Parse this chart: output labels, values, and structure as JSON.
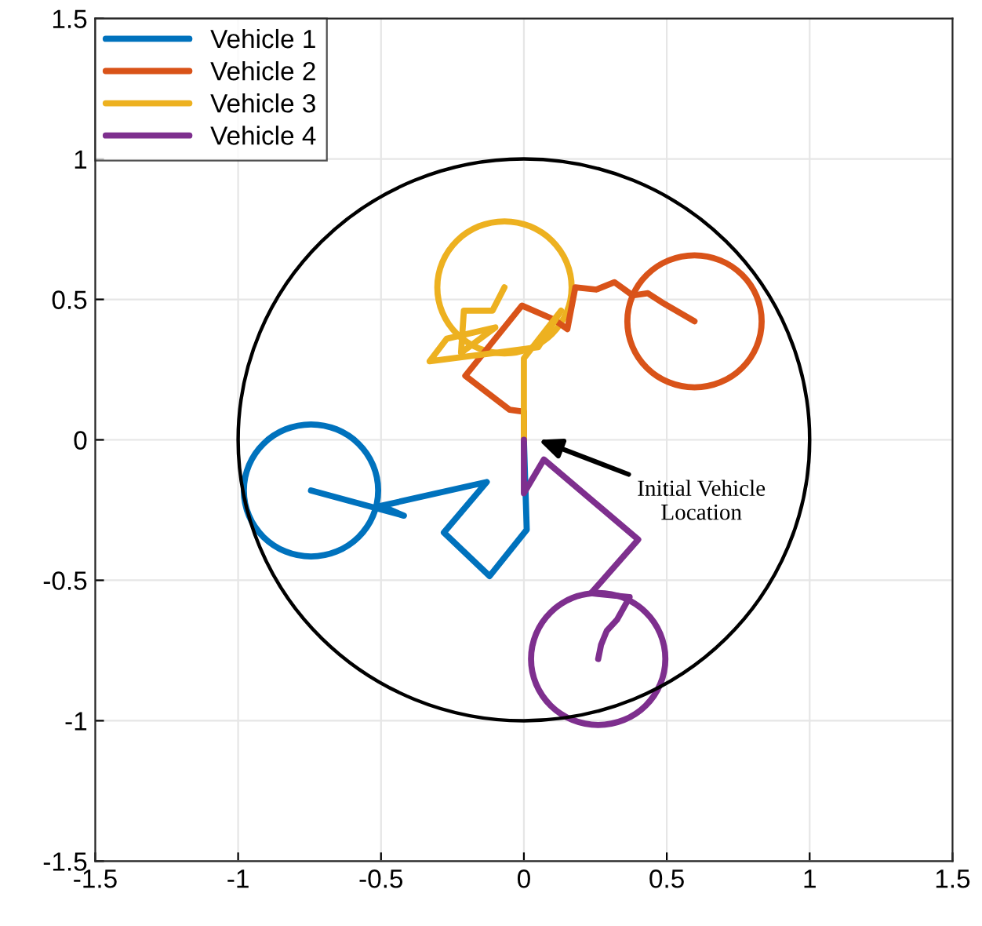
{
  "chart_data": {
    "type": "line",
    "xlim": [
      -1.5,
      1.5
    ],
    "ylim": [
      -1.5,
      1.5
    ],
    "xticks": [
      -1.5,
      -1,
      -0.5,
      0,
      0.5,
      1,
      1.5
    ],
    "yticks": [
      -1.5,
      -1,
      -0.5,
      0,
      0.5,
      1,
      1.5
    ],
    "grid": true,
    "legend": "top left",
    "marker": "none",
    "line_style": "solid",
    "annotations": [
      "Initial Vehicle\nLocation"
    ],
    "series": [
      {
        "name": "Vehicle 1",
        "color": "#0072bd",
        "x": [
          0,
          0.01,
          -0.12,
          -0.28,
          -0.13,
          -0.5,
          -0.42,
          -0.745
        ],
        "values": [
          0,
          -0.32,
          -0.485,
          -0.33,
          -0.15,
          -0.235,
          -0.27,
          -0.18
        ]
      },
      {
        "name": "Vehicle 2",
        "color": "#d95319",
        "x": [
          0,
          0,
          -0.05,
          -0.205,
          -0.007,
          0.106,
          0.152,
          0.18,
          0.253,
          0.317,
          0.381,
          0.434,
          0.482,
          0.597
        ],
        "values": [
          0,
          0.1,
          0.107,
          0.228,
          0.478,
          0.428,
          0.394,
          0.543,
          0.535,
          0.561,
          0.514,
          0.522,
          0.49,
          0.422
        ]
      },
      {
        "name": "Vehicle 3",
        "color": "#edb120",
        "x": [
          0,
          0,
          0.13,
          0.05,
          -0.1,
          -0.33,
          -0.27,
          -0.1,
          -0.22,
          -0.21,
          -0.11,
          -0.068
        ],
        "values": [
          0,
          0.29,
          0.46,
          0.33,
          0.31,
          0.28,
          0.36,
          0.4,
          0.31,
          0.46,
          0.46,
          0.543
        ]
      },
      {
        "name": "Vehicle 4",
        "color": "#7e2f8e",
        "x": [
          0,
          0,
          0.07,
          0.4,
          0.235,
          0.37,
          0.326,
          0.29,
          0.27,
          0.26
        ],
        "values": [
          0,
          -0.19,
          -0.07,
          -0.355,
          -0.546,
          -0.56,
          -0.64,
          -0.68,
          -0.73,
          -0.78
        ]
      }
    ]
  }
}
